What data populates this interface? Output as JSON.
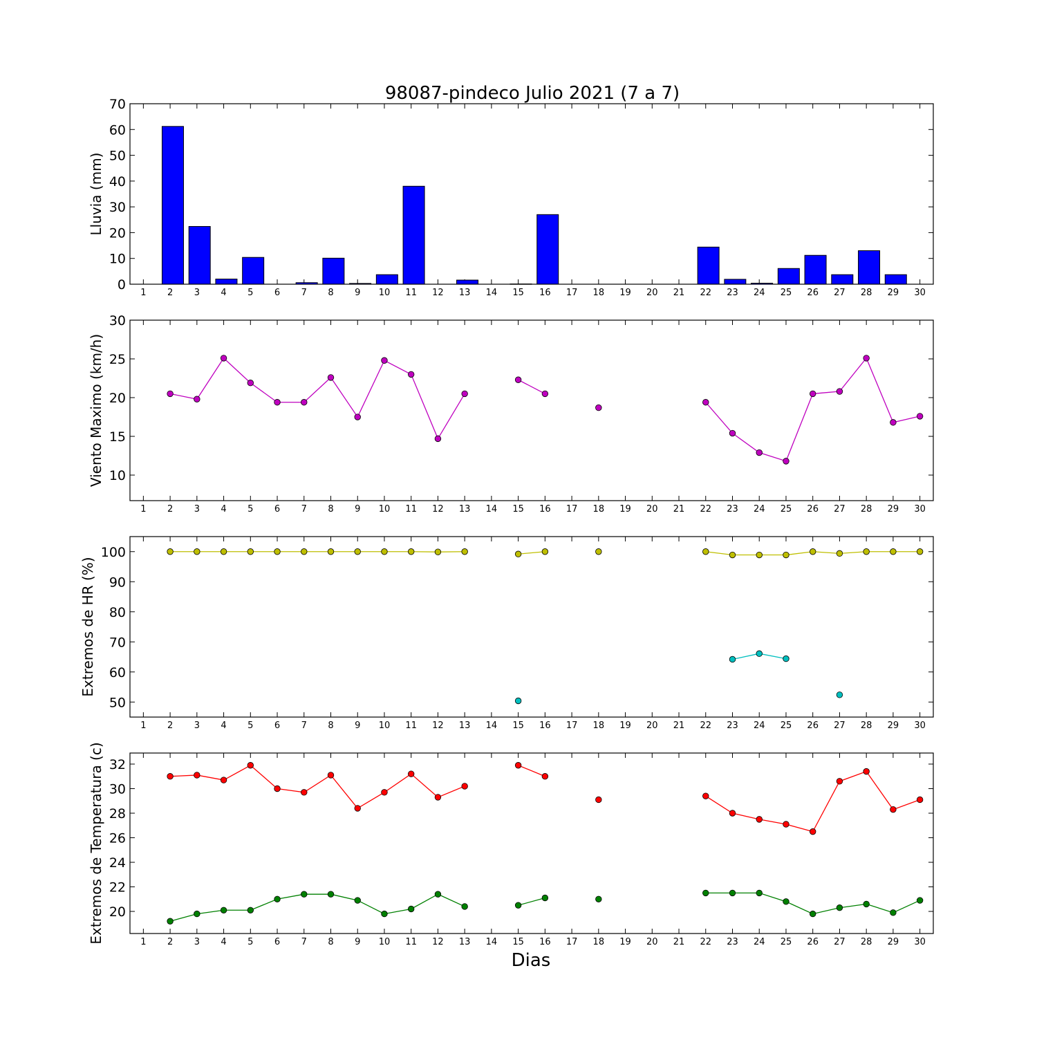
{
  "chart_data": {
    "title": "98087-pindeco Julio 2021  (7 a 7)",
    "xlabel": "Dias",
    "days": [
      1,
      2,
      3,
      4,
      5,
      6,
      7,
      8,
      9,
      10,
      11,
      12,
      13,
      14,
      15,
      16,
      17,
      18,
      19,
      20,
      21,
      22,
      23,
      24,
      25,
      26,
      27,
      28,
      29,
      30
    ],
    "panels": [
      {
        "type": "bar",
        "ylabel": "Lluvia (mm)",
        "ylim": [
          0,
          70
        ],
        "yticks": [
          0,
          10,
          20,
          30,
          40,
          50,
          60,
          70
        ],
        "series": [
          {
            "color": "#0000ff",
            "values": [
              0,
              61.2,
              22.4,
              2.0,
              10.4,
              0,
              0.6,
              10.1,
              0.3,
              3.7,
              38.0,
              0,
              1.6,
              0,
              0.1,
              27.0,
              0,
              0,
              0,
              0,
              0,
              14.4,
              1.9,
              0.4,
              6.1,
              11.2,
              3.7,
              13.0,
              3.7,
              0
            ]
          }
        ]
      },
      {
        "type": "line",
        "ylabel": "Viento Maximo (km/h)",
        "ylim": [
          6.7,
          30
        ],
        "yticks": [
          10,
          15,
          20,
          25,
          30
        ],
        "series": [
          {
            "color": "#bf00bf",
            "values": [
              null,
              20.5,
              19.8,
              25.1,
              21.9,
              19.4,
              19.4,
              22.6,
              17.5,
              24.8,
              23.0,
              14.7,
              20.5,
              null,
              22.3,
              20.5,
              null,
              18.7,
              null,
              null,
              null,
              19.4,
              15.4,
              12.9,
              11.8,
              20.5,
              20.8,
              25.1,
              16.8,
              17.6
            ]
          }
        ]
      },
      {
        "type": "line",
        "ylabel": "Extremos de HR (%)",
        "ylim": [
          45,
          105
        ],
        "yticks": [
          50,
          60,
          70,
          80,
          90,
          100
        ],
        "series": [
          {
            "color": "#bfbf00",
            "values": [
              null,
              100,
              100,
              100,
              100,
              100,
              100,
              100,
              100,
              100,
              100,
              99.9,
              100,
              null,
              99.2,
              100,
              null,
              100,
              null,
              null,
              null,
              100,
              98.9,
              98.9,
              98.9,
              100,
              99.4,
              100,
              100,
              100
            ]
          },
          {
            "color": "#00bfbf",
            "values": [
              null,
              null,
              null,
              null,
              null,
              null,
              null,
              null,
              null,
              null,
              null,
              null,
              null,
              null,
              50.4,
              null,
              null,
              null,
              null,
              null,
              null,
              null,
              64.2,
              66.1,
              64.4,
              null,
              52.4,
              null,
              null,
              null
            ]
          }
        ]
      },
      {
        "type": "line",
        "ylabel": "Extremos de Temperatura (c)",
        "ylim": [
          18.2,
          32.9
        ],
        "yticks": [
          20,
          22,
          24,
          26,
          28,
          30,
          32
        ],
        "series": [
          {
            "color": "#ff0000",
            "values": [
              null,
              31.0,
              31.1,
              30.7,
              31.9,
              30.0,
              29.7,
              31.1,
              28.4,
              29.7,
              31.2,
              29.3,
              30.2,
              null,
              31.9,
              31.0,
              null,
              29.1,
              null,
              null,
              null,
              29.4,
              28.0,
              27.5,
              27.1,
              26.5,
              30.6,
              31.4,
              28.3,
              29.1
            ]
          },
          {
            "color": "#008000",
            "values": [
              null,
              19.2,
              19.8,
              20.1,
              20.1,
              21.0,
              21.4,
              21.4,
              20.9,
              19.8,
              20.2,
              21.4,
              20.4,
              null,
              20.5,
              21.1,
              null,
              21.0,
              null,
              null,
              null,
              21.5,
              21.5,
              21.5,
              20.8,
              19.8,
              20.3,
              20.6,
              19.9,
              20.9
            ]
          }
        ]
      }
    ]
  }
}
